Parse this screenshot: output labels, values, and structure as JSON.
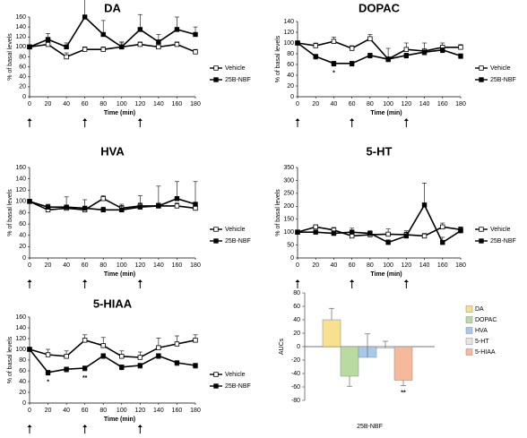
{
  "chart_data": [
    {
      "type": "line",
      "title": "DA",
      "x_label": "Time (min)",
      "y_label": "% of basal levels",
      "x": [
        0,
        20,
        40,
        60,
        80,
        100,
        120,
        140,
        160,
        180
      ],
      "xlim": [
        0,
        180
      ],
      "xticks": [
        0,
        20,
        40,
        60,
        80,
        100,
        120,
        140,
        160,
        180
      ],
      "ylim": [
        0,
        160
      ],
      "yticks": [
        0,
        20,
        40,
        60,
        80,
        100,
        120,
        140,
        160
      ],
      "arrows": [
        0,
        60,
        120
      ],
      "series": [
        {
          "name": "Vehicle",
          "color": "#000000",
          "marker_fill": "#ffffff",
          "error_direction": "up",
          "values": [
            100,
            105,
            80,
            95,
            95,
            100,
            105,
            100,
            105,
            90
          ],
          "errors": [
            0,
            5,
            8,
            5,
            5,
            8,
            5,
            8,
            5,
            5
          ]
        },
        {
          "name": "25B-NBF",
          "color": "#000000",
          "marker_fill": "#000000",
          "error_direction": "up",
          "values": [
            100,
            115,
            100,
            160,
            125,
            100,
            135,
            110,
            135,
            125
          ],
          "errors": [
            0,
            12,
            8,
            45,
            28,
            10,
            30,
            15,
            25,
            15
          ]
        }
      ],
      "annotations": []
    },
    {
      "type": "line",
      "title": "DOPAC",
      "x_label": "Time (min)",
      "y_label": "% of basal levels",
      "x": [
        0,
        20,
        40,
        60,
        80,
        100,
        120,
        140,
        160,
        180
      ],
      "xlim": [
        0,
        180
      ],
      "xticks": [
        0,
        20,
        40,
        60,
        80,
        100,
        120,
        140,
        160,
        180
      ],
      "ylim": [
        0,
        140
      ],
      "yticks": [
        0,
        20,
        40,
        60,
        80,
        100,
        120,
        140
      ],
      "arrows": [
        0,
        60,
        120
      ],
      "series": [
        {
          "name": "Vehicle",
          "color": "#000000",
          "marker_fill": "#ffffff",
          "error_direction": "up",
          "values": [
            100,
            95,
            103,
            90,
            108,
            70,
            88,
            85,
            92,
            92
          ],
          "errors": [
            0,
            5,
            8,
            5,
            8,
            20,
            12,
            15,
            8,
            5
          ]
        },
        {
          "name": "25B-NBF",
          "color": "#000000",
          "marker_fill": "#000000",
          "error_direction": "down",
          "values": [
            100,
            75,
            62,
            62,
            77,
            70,
            77,
            83,
            87,
            76
          ],
          "errors": [
            0,
            5,
            5,
            5,
            5,
            5,
            5,
            5,
            5,
            5
          ]
        }
      ],
      "annotations": [
        {
          "x": 40,
          "text": "*"
        }
      ]
    },
    {
      "type": "line",
      "title": "HVA",
      "x_label": "Time (min)",
      "y_label": "% of basal levels",
      "x": [
        0,
        20,
        40,
        60,
        80,
        100,
        120,
        140,
        160,
        180
      ],
      "xlim": [
        0,
        180
      ],
      "xticks": [
        0,
        20,
        40,
        60,
        80,
        100,
        120,
        140,
        160,
        180
      ],
      "ylim": [
        0,
        160
      ],
      "yticks": [
        0,
        20,
        40,
        60,
        80,
        100,
        120,
        140,
        160
      ],
      "arrows": [
        0,
        60,
        120
      ],
      "series": [
        {
          "name": "Vehicle",
          "color": "#000000",
          "marker_fill": "#ffffff",
          "error_direction": "up",
          "values": [
            100,
            85,
            88,
            85,
            105,
            88,
            92,
            92,
            92,
            88
          ],
          "errors": [
            0,
            5,
            5,
            5,
            5,
            5,
            5,
            5,
            5,
            5
          ]
        },
        {
          "name": "25B-NBF",
          "color": "#000000",
          "marker_fill": "#000000",
          "error_direction": "up",
          "values": [
            100,
            90,
            90,
            88,
            85,
            85,
            90,
            92,
            105,
            95
          ],
          "errors": [
            0,
            5,
            18,
            15,
            5,
            10,
            20,
            35,
            30,
            40
          ]
        }
      ],
      "annotations": []
    },
    {
      "type": "line",
      "title": "5-HT",
      "x_label": "Time (min)",
      "y_label": "% of basal levels",
      "x": [
        0,
        20,
        40,
        60,
        80,
        100,
        120,
        140,
        160,
        180
      ],
      "xlim": [
        0,
        180
      ],
      "xticks": [
        0,
        20,
        40,
        60,
        80,
        100,
        120,
        140,
        160,
        180
      ],
      "ylim": [
        0,
        350
      ],
      "yticks": [
        0,
        50,
        100,
        150,
        200,
        250,
        300,
        350
      ],
      "arrows": [
        0,
        60,
        120
      ],
      "series": [
        {
          "name": "Vehicle",
          "color": "#000000",
          "marker_fill": "#ffffff",
          "error_direction": "up",
          "values": [
            100,
            120,
            108,
            85,
            90,
            92,
            90,
            85,
            120,
            110
          ],
          "errors": [
            0,
            8,
            10,
            10,
            10,
            20,
            15,
            10,
            15,
            10
          ]
        },
        {
          "name": "25B-NBF",
          "color": "#000000",
          "marker_fill": "#000000",
          "error_direction": "up",
          "values": [
            100,
            100,
            95,
            100,
            95,
            60,
            85,
            205,
            60,
            105
          ],
          "errors": [
            0,
            5,
            10,
            15,
            10,
            10,
            15,
            85,
            20,
            10
          ]
        }
      ],
      "annotations": []
    },
    {
      "type": "line",
      "title": "5-HIAA",
      "x_label": "Time (min)",
      "y_label": "% of basal levels",
      "x": [
        0,
        20,
        40,
        60,
        80,
        100,
        120,
        140,
        160,
        180
      ],
      "xlim": [
        0,
        180
      ],
      "xticks": [
        0,
        20,
        40,
        60,
        80,
        100,
        120,
        140,
        160,
        180
      ],
      "ylim": [
        0,
        160
      ],
      "yticks": [
        0,
        20,
        40,
        60,
        80,
        100,
        120,
        140,
        160
      ],
      "arrows": [
        0,
        60,
        120
      ],
      "series": [
        {
          "name": "Vehicle",
          "color": "#000000",
          "marker_fill": "#ffffff",
          "error_direction": "up",
          "values": [
            100,
            90,
            87,
            117,
            107,
            87,
            85,
            103,
            110,
            117
          ],
          "errors": [
            0,
            10,
            10,
            10,
            15,
            10,
            10,
            18,
            15,
            10
          ]
        },
        {
          "name": "25B-NBF",
          "color": "#000000",
          "marker_fill": "#000000",
          "error_direction": "down",
          "values": [
            100,
            57,
            63,
            65,
            88,
            67,
            70,
            88,
            75,
            70
          ],
          "errors": [
            0,
            5,
            5,
            5,
            5,
            5,
            5,
            5,
            5,
            5
          ]
        }
      ],
      "annotations": [
        {
          "x": 20,
          "text": "*"
        },
        {
          "x": 60,
          "text": "**"
        }
      ]
    },
    {
      "type": "bar",
      "x_label": "25B-NBF",
      "y_label": "AUCs",
      "categories": [
        "DA",
        "DOPAC",
        "HVA",
        "5-HT",
        "5-HIAA"
      ],
      "values": [
        40,
        -44,
        -16,
        -2,
        -50
      ],
      "errors": [
        17,
        15,
        35,
        10,
        8
      ],
      "error_directions": [
        "up",
        "down",
        "up",
        "up",
        "down"
      ],
      "colors": [
        "#f7e08e",
        "#b9dba1",
        "#a9c9e9",
        "#e6e6e6",
        "#f7b99b"
      ],
      "ylim": [
        -80,
        80
      ],
      "yticks": [
        -80,
        -60,
        -40,
        -20,
        0,
        20,
        40,
        60,
        80
      ],
      "annotations": [
        {
          "category": "5-HIAA",
          "text": "**"
        }
      ]
    }
  ]
}
